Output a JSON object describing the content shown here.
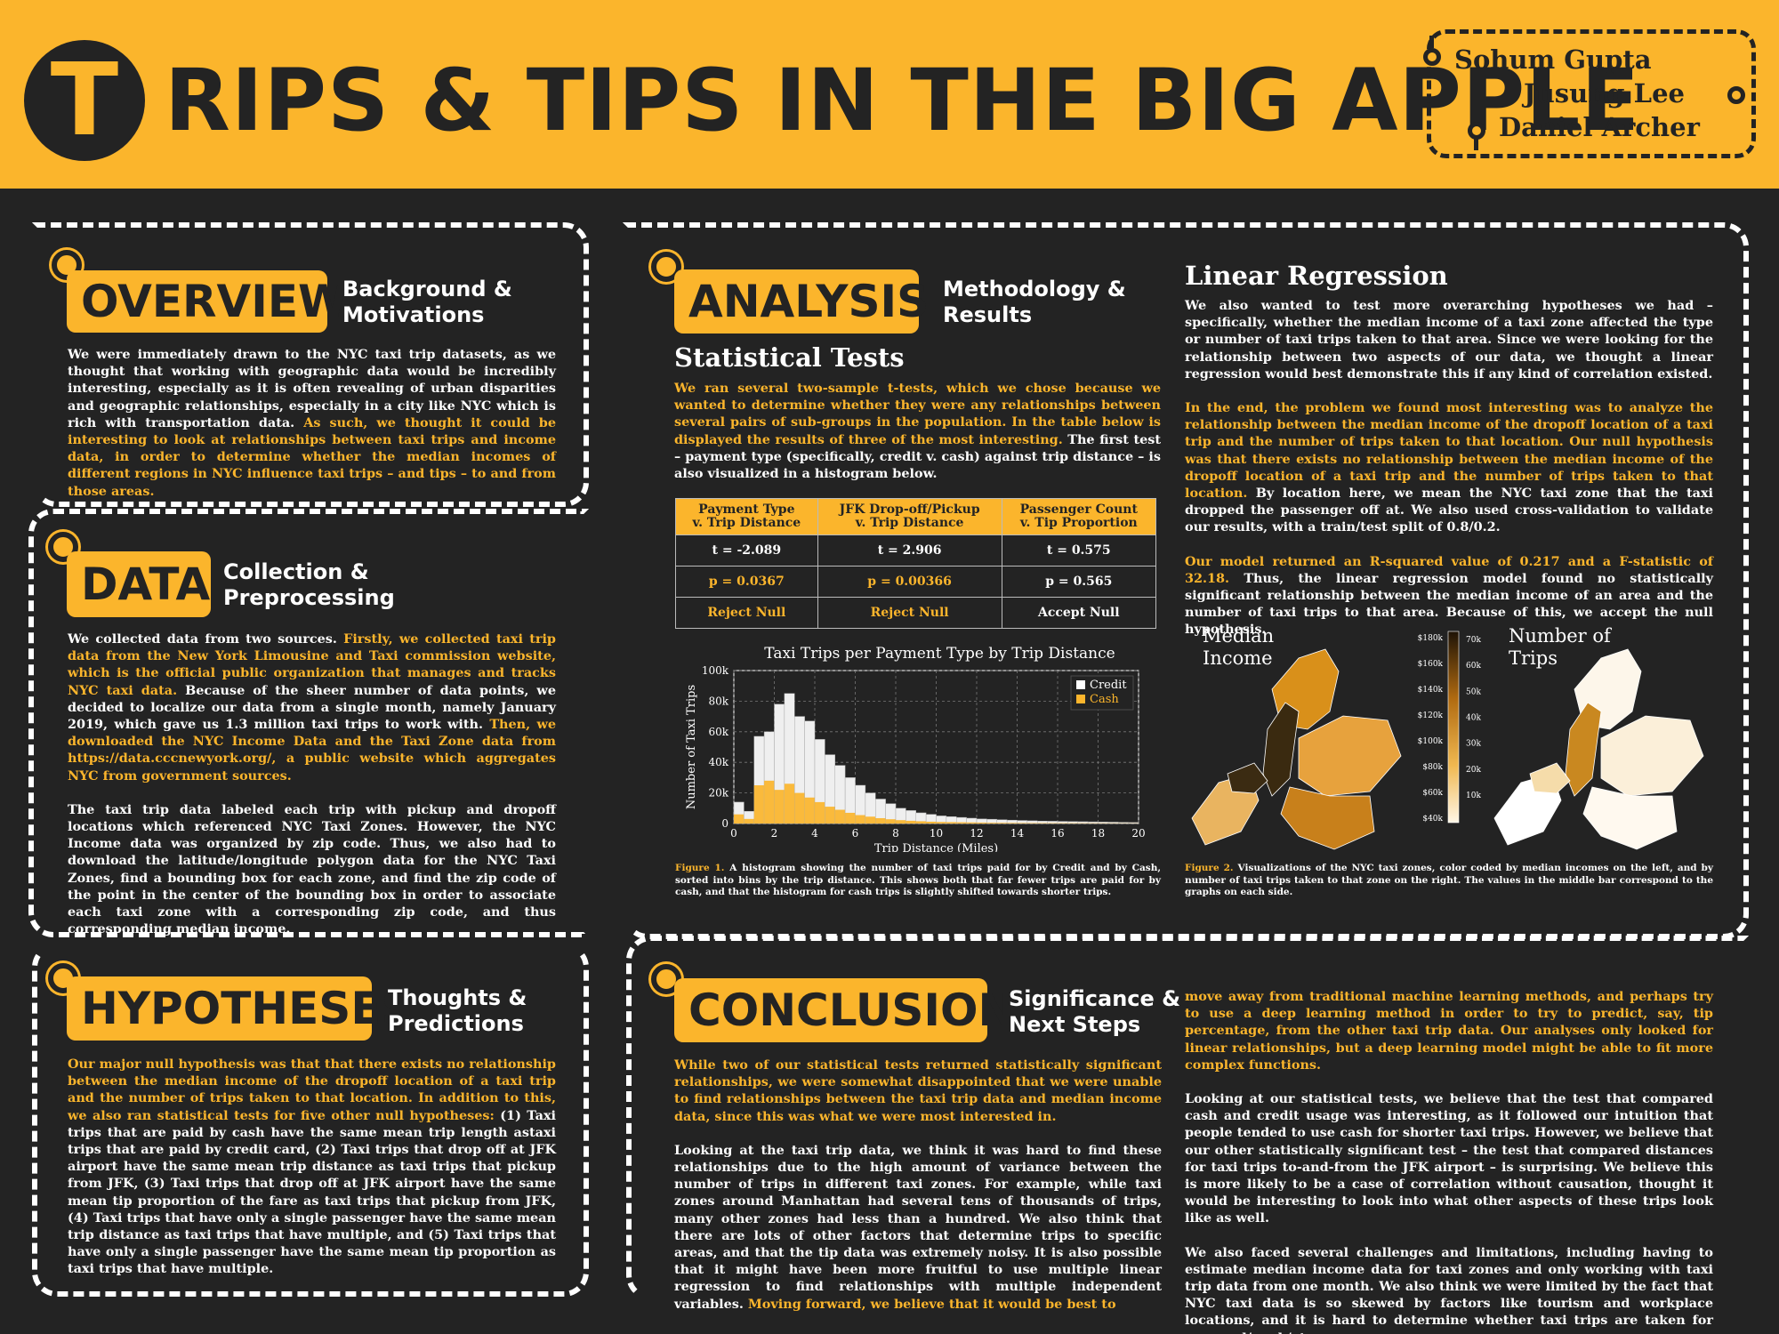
{
  "header": {
    "logo_letter": "T",
    "title": "RIPS & TIPS IN THE BIG APPLE",
    "authors": [
      "Sohum Gupta",
      "Jusung Lee",
      "Daniel Archer"
    ]
  },
  "overview": {
    "tag": "OVERVIEW",
    "subtitle": [
      "Background &",
      "Motivations"
    ],
    "paragraphs": [
      [
        {
          "t": "We were immediately drawn to the NYC taxi trip datasets, as we thought that working with geographic data would be incredibly interesting, especially as it is often revealing of urban disparities and geographic relationships, especially in a city like NYC which is rich with transportation data. ",
          "y": false
        },
        {
          "t": "As such, we thought it could be interesting to look at relationships between taxi trips and income data, in order to determine whether the median incomes of different regions in NYC influence taxi trips – and tips – to and from those areas.",
          "y": true
        }
      ]
    ]
  },
  "data_section": {
    "tag": "DATA",
    "subtitle": [
      "Collection &",
      "Preprocessing"
    ],
    "paragraphs": [
      [
        {
          "t": "We collected data from two sources. ",
          "y": false
        },
        {
          "t": "Firstly, we collected taxi trip data from the New York Limousine and Taxi commission website, which is the official public organization that manages and tracks NYC taxi data.",
          "y": true
        },
        {
          "t": " Because of the sheer number of data points, we decided to localize our data from a single month, namely January 2019, which gave us 1.3 million taxi trips to work with. ",
          "y": false
        },
        {
          "t": "Then, we downloaded the NYC Income Data and the Taxi Zone data from https://data.cccnewyork.org/, a public website which aggregates NYC from government sources.",
          "y": true
        }
      ],
      [
        {
          "t": "The taxi trip data labeled each trip with pickup and dropoff locations which referenced NYC Taxi Zones. However, the NYC Income data was organized by zip code. Thus, we also had to download the latitude/longitude polygon data for the NYC Taxi Zones, find a bounding box for each zone, and find the zip code of the point in the center of the bounding box in order to associate each taxi zone with a corresponding zip code, and thus corresponding median income.",
          "y": false
        }
      ]
    ]
  },
  "hypotheses": {
    "tag": "HYPOTHESES",
    "subtitle": [
      "Thoughts &",
      "Predictions"
    ],
    "paragraphs": [
      [
        {
          "t": "Our major null hypothesis was that that there exists no relationship between the median income of the dropoff location of a taxi trip and the number of trips taken to that location. In addition to this, we also ran statistical tests for five other null hypotheses:",
          "y": true
        },
        {
          "t": " (1) Taxi trips that are paid by cash have the same mean trip length astaxi trips that are paid by credit card, (2) Taxi trips that drop off at JFK airport have the same mean trip distance as taxi trips that pickup from JFK, (3) Taxi trips that drop off at JFK airport have the same mean tip proportion of the fare as taxi trips that pickup from JFK, (4) Taxi trips that have only a single passenger have the same mean trip distance as taxi trips that have multiple, and (5) Taxi trips that have only a single passenger have the same mean tip proportion as taxi trips that have multiple.",
          "y": false
        }
      ]
    ]
  },
  "analysis": {
    "tag": "ANALYSIS",
    "subtitle": [
      "Methodology &",
      "Results"
    ],
    "stat_heading": "Statistical Tests",
    "stat_paragraph": [
      {
        "t": "We ran several two-sample t-tests, which we chose because we wanted to determine whether they were any relationships between several pairs of sub-groups in the population. In the table below is displayed the results of three of the most interesting.",
        "y": true
      },
      {
        "t": " The first test – payment type (specifically, credit v. cash) against trip distance – is also visualized in a histogram below.",
        "y": false
      }
    ],
    "table": {
      "headers": [
        [
          "Payment Type",
          "v. Trip Distance"
        ],
        [
          "JFK Drop-off/Pickup",
          "v. Trip Distance"
        ],
        [
          "Passenger Count",
          "v. Tip Proportion"
        ]
      ],
      "rows": [
        [
          {
            "t": "t = -2.089",
            "y": false
          },
          {
            "t": "t = 2.906",
            "y": false
          },
          {
            "t": "t = 0.575",
            "y": false
          }
        ],
        [
          {
            "t": "p = 0.0367",
            "y": true
          },
          {
            "t": "p = 0.00366",
            "y": true
          },
          {
            "t": "p = 0.565",
            "y": false
          }
        ],
        [
          {
            "t": "Reject Null",
            "y": true
          },
          {
            "t": "Reject Null",
            "y": true
          },
          {
            "t": "Accept Null",
            "y": false
          }
        ]
      ]
    },
    "figure1_caption": [
      {
        "t": "Figure 1.",
        "y": true
      },
      {
        "t": " A histogram showing the number of taxi trips paid for by Credit and by Cash, sorted into bins by the trip distance. This shows both that far fewer trips are paid for by cash, and that the histogram for cash trips is slightly shifted towards shorter trips.",
        "y": false
      }
    ],
    "lr_heading": "Linear Regression",
    "lr_paragraphs": [
      [
        {
          "t": "We also wanted to test more overarching hypotheses we had – specifically, whether the median income of a taxi zone affected the type or number of taxi trips taken to that area. Since we were looking for the relationship between two aspects of our data, we thought a linear regression would best demonstrate this if any kind of correlation existed.",
          "y": false
        }
      ],
      [
        {
          "t": "In the end, the problem we found most interesting was to analyze the relationship between the median income of the dropoff location of a taxi trip and the number of trips taken to that location. Our null hypothesis was that there exists no relationship between the median income of the dropoff location of a taxi trip and the number of trips taken to that location.",
          "y": true
        },
        {
          "t": " By location here, we mean the NYC taxi zone that the taxi dropped the passenger off at. We also used cross-validation to validate our results, with a train/test split of 0.8/0.2.",
          "y": false
        }
      ],
      [
        {
          "t": "Our model returned an R-squared value of 0.217 and a F-statistic of 32.18.",
          "y": true
        },
        {
          "t": " Thus, the linear regression model found no statistically significant relationship between the median income of an area and the number of taxi trips to that area. Because of this, we accept the null hypothesis.",
          "y": false
        }
      ]
    ],
    "map_left_label": [
      "Median",
      "Income"
    ],
    "map_right_label": [
      "Number of",
      "Trips"
    ],
    "income_scale": [
      "$180k",
      "$160k",
      "$140k",
      "$120k",
      "$100k",
      "$80k",
      "$60k",
      "$40k"
    ],
    "trips_scale": [
      "70k",
      "60k",
      "50k",
      "40k",
      "30k",
      "20k",
      "10k"
    ],
    "figure2_caption": [
      {
        "t": "Figure 2.",
        "y": true
      },
      {
        "t": " Visualizations of the NYC taxi zones, color coded by median incomes on the left, and by number of taxi trips taken to that zone on the right. The values in the middle bar correspond to the graphs on each side.",
        "y": false
      }
    ]
  },
  "conclusion": {
    "tag": "CONCLUSION",
    "subtitle": [
      "Significance &",
      "Next Steps"
    ],
    "left_paragraphs": [
      [
        {
          "t": "While two of our statistical tests returned statistically significant relationships, we were somewhat disappointed that we were unable to find relationships between the taxi trip data and median income data, since this was what we were most interested in.",
          "y": true
        }
      ],
      [
        {
          "t": "Looking at the taxi trip data, we think it was hard to find these relationships due to the high amount of variance between the number of trips in different taxi zones. For example, while taxi zones around Manhattan had several tens of thousands of trips, many other zones had less than a hundred. We also think that there are lots of other factors that determine trips to specific areas, and that the tip data was extremely noisy. It is also possible that it might have been more fruitful to use multiple linear regression to find relationships with multiple independent variables. ",
          "y": false
        },
        {
          "t": "Moving forward, we believe that it would be best to",
          "y": true
        }
      ]
    ],
    "right_paragraphs": [
      [
        {
          "t": "move away from traditional machine learning methods, and perhaps try to use a deep learning method in order to try to predict, say, tip percentage, from the other taxi trip data. Our analyses only looked for linear relationships, but a deep learning model might be able to fit more complex functions.",
          "y": true
        }
      ],
      [
        {
          "t": "Looking at our statistical tests, we believe that the test that compared cash and credit usage was interesting, as it followed our intuition that people tended to use cash for shorter taxi trips. However, we believe that our other statistically significant test – the test that compared distances for taxi trips to-and-from the JFK airport – is surprising. We believe this is more likely to be a case of correlation without causation, thought it would be interesting to look into what other aspects of these trips look like as well.",
          "y": false
        }
      ],
      [
        {
          "t": "We also faced several challenges and limitations, including having to estimate median income data for taxi zones and only working with taxi trip data from one month. We also think we were limited by the fact that NYC taxi data is so skewed by factors like tourism and workplace locations, and it is hard to determine whether taxi trips are taken for personal/work/etc. reasons.",
          "y": false
        }
      ]
    ]
  },
  "colors": {
    "accent": "#fbb52c",
    "background": "#232323",
    "text": "#ffffff"
  },
  "chart_data": {
    "type": "bar",
    "title": "Taxi Trips per Payment Type by Trip Distance",
    "xlabel": "Trip Distance (Miles)",
    "ylabel": "Number of Taxi Trips",
    "xlim": [
      0,
      20
    ],
    "ylim": [
      0,
      100000
    ],
    "x_ticks": [
      "0",
      "2",
      "4",
      "6",
      "8",
      "10",
      "12",
      "14",
      "16",
      "18",
      "20"
    ],
    "y_ticks": [
      "0",
      "20k",
      "40k",
      "60k",
      "80k",
      "100k"
    ],
    "bin_width": 0.5,
    "legend_position": "top-right",
    "grid": true,
    "x": [
      0,
      0.5,
      1,
      1.5,
      2,
      2.5,
      3,
      3.5,
      4,
      4.5,
      5,
      5.5,
      6,
      6.5,
      7,
      7.5,
      8,
      8.5,
      9,
      9.5,
      10,
      10.5,
      11,
      11.5,
      12,
      12.5,
      13,
      13.5,
      14,
      14.5,
      15,
      15.5,
      16,
      16.5,
      17,
      17.5,
      18,
      18.5,
      19,
      19.5
    ],
    "series": [
      {
        "name": "Credit",
        "color": "#ffffff",
        "values": [
          14000,
          8000,
          57000,
          60000,
          78000,
          85000,
          70000,
          67000,
          55000,
          45000,
          38000,
          30000,
          25000,
          20000,
          16000,
          13000,
          10000,
          8500,
          7000,
          6000,
          5000,
          4500,
          4000,
          3500,
          3000,
          2800,
          2500,
          2200,
          2000,
          1800,
          1600,
          1500,
          1400,
          1300,
          1200,
          1100,
          1000,
          900,
          800,
          700
        ]
      },
      {
        "name": "Cash",
        "color": "#fbb52c",
        "values": [
          6000,
          3000,
          25000,
          28000,
          22000,
          26000,
          20000,
          17000,
          14000,
          11000,
          9000,
          7000,
          5500,
          4500,
          3500,
          2800,
          2200,
          1800,
          1500,
          1200,
          1000,
          900,
          800,
          700,
          600,
          500,
          450,
          400,
          350,
          300,
          280,
          260,
          240,
          220,
          200,
          180,
          160,
          140,
          120,
          100
        ]
      }
    ]
  }
}
